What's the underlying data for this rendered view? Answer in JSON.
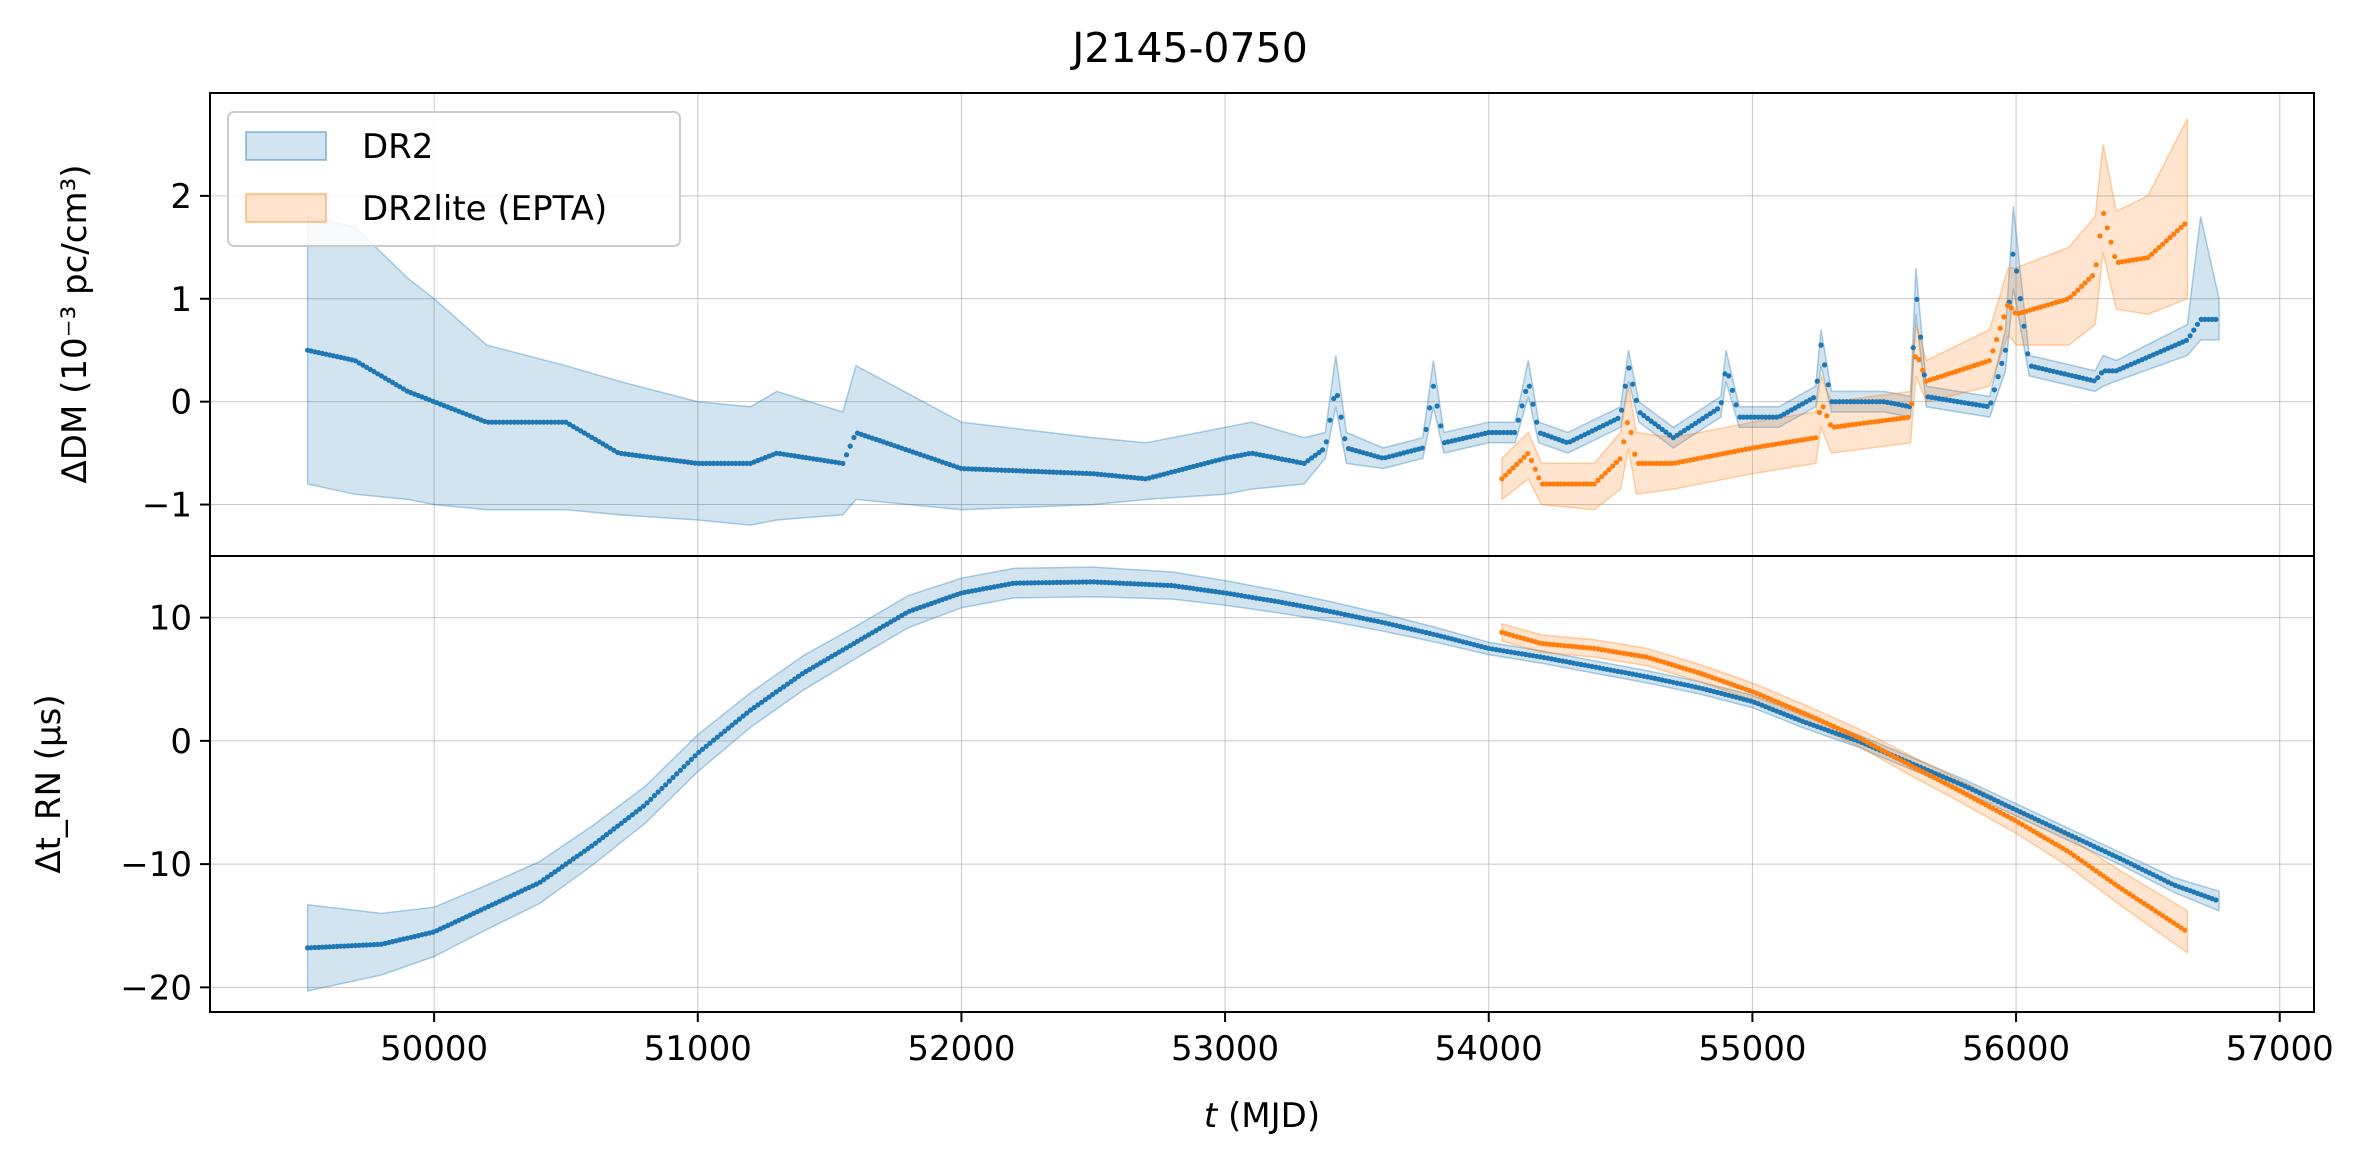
{
  "chart_data": {
    "type": "line",
    "title": "J2145-0750",
    "xlabel_italic": "t",
    "xlabel_rest": " (MJD)",
    "xlim": [
      49150,
      57130
    ],
    "x_ticks": [
      50000,
      51000,
      52000,
      53000,
      54000,
      55000,
      56000,
      57000
    ],
    "grid": true,
    "legend_placement": "top-left",
    "panels": [
      {
        "id": "dm",
        "ylabel": "ΔDM (10⁻³ pc/cm³)",
        "ylim": [
          -1.5,
          3.0
        ],
        "y_ticks": [
          -1,
          0,
          1,
          2
        ],
        "y_tick_labels": [
          "−1",
          "0",
          "1",
          "2"
        ],
        "series": [
          {
            "name": "DR2",
            "color": "#1f77b4",
            "band_color": "#1f77b4",
            "x": [
              49520,
              49700,
              49900,
              50000,
              50200,
              50500,
              50700,
              51000,
              51200,
              51300,
              51550,
              51600,
              52000,
              52500,
              52700,
              53000,
              53100,
              53300,
              53380,
              53420,
              53460,
              53600,
              53750,
              53790,
              53830,
              54000,
              54100,
              54150,
              54190,
              54300,
              54500,
              54530,
              54570,
              54700,
              54880,
              54900,
              54950,
              55100,
              55240,
              55260,
              55300,
              55500,
              55600,
              55620,
              55660,
              55900,
              55960,
              55990,
              56050,
              56300,
              56330,
              56380,
              56650,
              56700,
              56770
            ],
            "y": [
              0.5,
              0.4,
              0.1,
              0.0,
              -0.2,
              -0.2,
              -0.5,
              -0.6,
              -0.6,
              -0.5,
              -0.6,
              -0.3,
              -0.65,
              -0.7,
              -0.75,
              -0.55,
              -0.5,
              -0.6,
              -0.45,
              0.15,
              -0.45,
              -0.55,
              -0.45,
              0.15,
              -0.4,
              -0.3,
              -0.3,
              0.2,
              -0.3,
              -0.4,
              -0.15,
              0.35,
              -0.1,
              -0.35,
              -0.05,
              0.35,
              -0.15,
              -0.15,
              0.05,
              0.55,
              0.0,
              0.0,
              -0.05,
              1.1,
              0.05,
              -0.05,
              0.5,
              1.5,
              0.35,
              0.2,
              0.3,
              0.3,
              0.6,
              0.8,
              0.8
            ],
            "lower": [
              -0.8,
              -0.9,
              -0.95,
              -1.0,
              -1.05,
              -1.05,
              -1.1,
              -1.15,
              -1.2,
              -1.15,
              -1.1,
              -0.95,
              -1.05,
              -1.0,
              -0.95,
              -0.9,
              -0.85,
              -0.8,
              -0.55,
              -0.05,
              -0.6,
              -0.65,
              -0.55,
              -0.05,
              -0.5,
              -0.4,
              -0.4,
              0.05,
              -0.4,
              -0.5,
              -0.25,
              0.2,
              -0.2,
              -0.45,
              -0.15,
              0.2,
              -0.25,
              -0.25,
              -0.05,
              0.35,
              -0.1,
              -0.1,
              -0.15,
              0.85,
              -0.05,
              -0.15,
              0.3,
              1.1,
              0.25,
              0.1,
              0.15,
              0.2,
              0.45,
              0.6,
              0.6
            ],
            "upper": [
              1.8,
              1.7,
              1.2,
              1.0,
              0.55,
              0.35,
              0.2,
              0.0,
              -0.05,
              0.1,
              -0.1,
              0.35,
              -0.2,
              -0.35,
              -0.4,
              -0.25,
              -0.2,
              -0.35,
              -0.3,
              0.45,
              -0.3,
              -0.45,
              -0.35,
              0.4,
              -0.3,
              -0.2,
              -0.2,
              0.4,
              -0.2,
              -0.3,
              -0.05,
              0.5,
              0.0,
              -0.25,
              0.05,
              0.5,
              -0.05,
              -0.05,
              0.15,
              0.7,
              0.1,
              0.1,
              0.05,
              1.3,
              0.15,
              0.05,
              0.7,
              1.9,
              0.45,
              0.3,
              0.45,
              0.4,
              0.75,
              1.8,
              1.0
            ]
          },
          {
            "name": "DR2lite (EPTA)",
            "color": "#ff7f0e",
            "band_color": "#ff7f0e",
            "x": [
              54050,
              54150,
              54200,
              54400,
              54500,
              54530,
              54560,
              54700,
              54900,
              55000,
              55240,
              55260,
              55300,
              55600,
              55620,
              55660,
              55900,
              55970,
              56000,
              56200,
              56300,
              56330,
              56380,
              56500,
              56650
            ],
            "y": [
              -0.75,
              -0.5,
              -0.8,
              -0.8,
              -0.55,
              -0.15,
              -0.6,
              -0.6,
              -0.5,
              -0.45,
              -0.35,
              0.0,
              -0.25,
              -0.15,
              0.5,
              0.2,
              0.4,
              0.95,
              0.85,
              1.0,
              1.25,
              1.85,
              1.35,
              1.4,
              1.75
            ],
            "lower": [
              -0.95,
              -0.75,
              -1.0,
              -1.05,
              -0.85,
              -0.45,
              -0.9,
              -0.85,
              -0.75,
              -0.7,
              -0.6,
              -0.25,
              -0.5,
              -0.4,
              0.25,
              0.0,
              0.15,
              0.65,
              0.55,
              0.55,
              0.75,
              1.45,
              0.9,
              0.85,
              1.0
            ],
            "upper": [
              -0.55,
              -0.3,
              -0.6,
              -0.6,
              -0.3,
              0.15,
              -0.3,
              -0.35,
              -0.25,
              -0.2,
              -0.1,
              0.25,
              0.0,
              0.1,
              0.75,
              0.4,
              0.7,
              1.3,
              1.3,
              1.5,
              1.8,
              2.5,
              1.85,
              2.0,
              2.75
            ]
          }
        ]
      },
      {
        "id": "rn",
        "ylabel": "Δt_RN (μs)",
        "ylim": [
          -22,
          15
        ],
        "y_ticks": [
          -20,
          -10,
          0,
          10
        ],
        "y_tick_labels": [
          "−20",
          "−10",
          "0",
          "10"
        ],
        "series": [
          {
            "name": "DR2",
            "color": "#1f77b4",
            "band_color": "#1f77b4",
            "x": [
              49520,
              49800,
              50000,
              50200,
              50400,
              50600,
              50800,
              51000,
              51200,
              51400,
              51600,
              51800,
              52000,
              52200,
              52500,
              52800,
              53000,
              53200,
              53400,
              53600,
              53800,
              54000,
              54200,
              54400,
              54600,
              54800,
              55000,
              55200,
              55400,
              55600,
              55800,
              56000,
              56200,
              56400,
              56600,
              56770
            ],
            "y": [
              -16.8,
              -16.5,
              -15.5,
              -13.5,
              -11.5,
              -8.5,
              -5.2,
              -1.0,
              2.5,
              5.5,
              8.0,
              10.5,
              12.0,
              12.8,
              12.9,
              12.6,
              12.0,
              11.3,
              10.5,
              9.6,
              8.6,
              7.5,
              6.8,
              6.0,
              5.2,
              4.3,
              3.2,
              1.5,
              0.0,
              -1.8,
              -3.6,
              -5.6,
              -7.6,
              -9.6,
              -11.7,
              -13.0
            ],
            "half_width": [
              3.5,
              2.5,
              2.0,
              1.8,
              1.7,
              1.6,
              1.5,
              1.5,
              1.4,
              1.4,
              1.3,
              1.3,
              1.2,
              1.2,
              1.2,
              1.1,
              1.0,
              0.9,
              0.8,
              0.7,
              0.6,
              0.5,
              0.5,
              0.5,
              0.5,
              0.5,
              0.5,
              0.5,
              0.5,
              0.5,
              0.5,
              0.5,
              0.5,
              0.5,
              0.6,
              0.8
            ]
          },
          {
            "name": "DR2lite (EPTA)",
            "color": "#ff7f0e",
            "band_color": "#ff7f0e",
            "x": [
              54050,
              54200,
              54400,
              54600,
              54800,
              55000,
              55200,
              55400,
              55600,
              55800,
              56000,
              56200,
              56400,
              56650
            ],
            "y": [
              8.8,
              7.9,
              7.5,
              6.8,
              5.5,
              4.0,
              2.2,
              0.3,
              -2.0,
              -4.2,
              -6.5,
              -9.0,
              -12.0,
              -15.5
            ],
            "half_width": [
              0.7,
              0.7,
              0.7,
              0.7,
              0.7,
              0.7,
              0.7,
              0.7,
              0.8,
              0.9,
              1.0,
              1.2,
              1.4,
              1.7
            ]
          }
        ]
      }
    ]
  }
}
